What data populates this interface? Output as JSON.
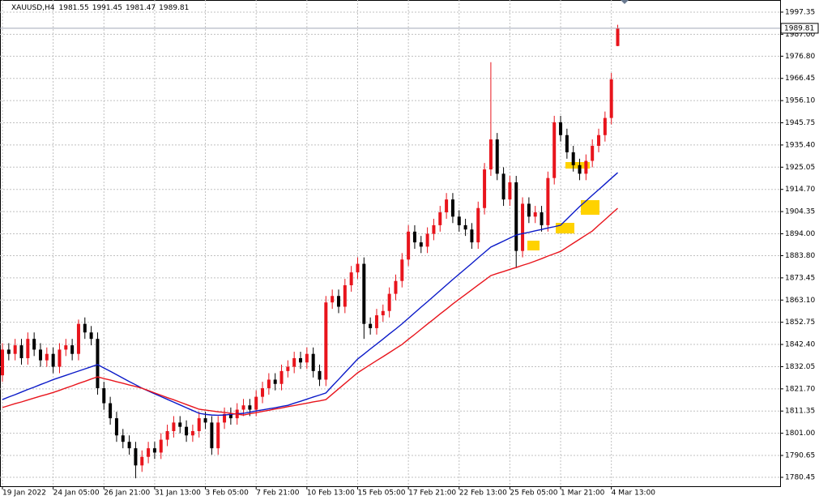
{
  "chart_data": {
    "type": "candlestick",
    "title": "XAUUSD,H4",
    "categories": [
      "19 Jan 2022",
      null,
      null,
      null,
      null,
      null,
      null,
      null,
      "24 Jan 05:00",
      null,
      null,
      null,
      null,
      null,
      null,
      null,
      "26 Jan 21:00",
      null,
      null,
      null,
      null,
      null,
      null,
      null,
      "31 Jan 13:00",
      null,
      null,
      null,
      null,
      null,
      null,
      null,
      "3 Feb 05:00",
      null,
      null,
      null,
      null,
      null,
      null,
      null,
      "7 Feb 21:00",
      null,
      null,
      null,
      null,
      null,
      null,
      null,
      "10 Feb 13:00",
      null,
      null,
      null,
      null,
      null,
      null,
      null,
      "15 Feb 05:00",
      null,
      null,
      null,
      null,
      null,
      null,
      null,
      "17 Feb 21:00",
      null,
      null,
      null,
      null,
      null,
      null,
      null,
      "22 Feb 13:00",
      null,
      null,
      null,
      null,
      null,
      null,
      null,
      "25 Feb 05:00",
      null,
      null,
      null,
      null,
      null,
      null,
      null,
      "1 Mar 21:00",
      null,
      null,
      null,
      null,
      null,
      null,
      null,
      "4 Mar 13:00",
      null
    ],
    "open": [
      1828,
      1840,
      1838,
      1842,
      1836,
      1845,
      1840,
      1835,
      1838,
      1832,
      1840,
      1842,
      1838,
      1852,
      1848,
      1845,
      1822,
      1815,
      1808,
      1800,
      1797,
      1794,
      1786,
      1790,
      1794,
      1792,
      1798,
      1802,
      1806,
      1804,
      1800,
      1802,
      1808,
      1806,
      1794,
      1806,
      1810,
      1808,
      1812,
      1814,
      1812,
      1818,
      1822,
      1826,
      1824,
      1830,
      1832,
      1836,
      1834,
      1838,
      1830,
      1826,
      1862,
      1865,
      1860,
      1870,
      1876,
      1880,
      1852,
      1850,
      1856,
      1858,
      1866,
      1872,
      1882,
      1895,
      1890,
      1888,
      1894,
      1898,
      1904,
      1910,
      1902,
      1898,
      1896,
      1890,
      1906,
      1924,
      1938,
      1922,
      1910,
      1918,
      1886,
      1908,
      1902,
      1904,
      1898,
      1920,
      1946,
      1940,
      1932,
      1926,
      1922,
      1928,
      1935,
      1940,
      1948,
      1981.55
    ],
    "high": [
      1843,
      1843,
      1845,
      1845,
      1848,
      1848,
      1843,
      1841,
      1841,
      1843,
      1845,
      1845,
      1854,
      1855,
      1851,
      1848,
      1825,
      1818,
      1811,
      1803,
      1800,
      1797,
      1793,
      1797,
      1797,
      1801,
      1805,
      1809,
      1809,
      1807,
      1805,
      1811,
      1811,
      1809,
      1809,
      1813,
      1813,
      1815,
      1817,
      1817,
      1821,
      1825,
      1829,
      1829,
      1833,
      1835,
      1839,
      1839,
      1841,
      1841,
      1833,
      1865,
      1868,
      1868,
      1873,
      1879,
      1883,
      1883,
      1855,
      1859,
      1861,
      1869,
      1875,
      1885,
      1898,
      1898,
      1893,
      1897,
      1901,
      1907,
      1913,
      1913,
      1905,
      1901,
      1899,
      1909,
      1927,
      1974,
      1941,
      1925,
      1921,
      1921,
      1911,
      1911,
      1907,
      1907,
      1923,
      1949,
      1949,
      1943,
      1935,
      1929,
      1931,
      1938,
      1943,
      1951,
      1969,
      1991.45
    ],
    "low": [
      1825,
      1835,
      1835,
      1833,
      1833,
      1837,
      1832,
      1832,
      1829,
      1829,
      1837,
      1835,
      1835,
      1845,
      1842,
      1819,
      1812,
      1805,
      1797,
      1794,
      1791,
      1780,
      1783,
      1787,
      1789,
      1789,
      1795,
      1799,
      1801,
      1797,
      1797,
      1799,
      1803,
      1791,
      1791,
      1803,
      1805,
      1805,
      1809,
      1809,
      1809,
      1815,
      1819,
      1821,
      1821,
      1827,
      1829,
      1831,
      1831,
      1827,
      1823,
      1823,
      1859,
      1857,
      1857,
      1867,
      1873,
      1845,
      1847,
      1847,
      1853,
      1855,
      1863,
      1869,
      1879,
      1887,
      1885,
      1885,
      1891,
      1895,
      1901,
      1899,
      1895,
      1893,
      1887,
      1887,
      1903,
      1921,
      1919,
      1907,
      1907,
      1878,
      1883,
      1899,
      1899,
      1895,
      1895,
      1917,
      1937,
      1929,
      1923,
      1919,
      1919,
      1925,
      1932,
      1937,
      1945,
      1981.47
    ],
    "close": [
      1840,
      1838,
      1842,
      1836,
      1845,
      1840,
      1835,
      1838,
      1832,
      1840,
      1842,
      1838,
      1852,
      1848,
      1845,
      1822,
      1815,
      1808,
      1800,
      1797,
      1794,
      1786,
      1790,
      1794,
      1792,
      1798,
      1802,
      1806,
      1804,
      1800,
      1802,
      1808,
      1806,
      1794,
      1806,
      1810,
      1808,
      1812,
      1814,
      1812,
      1818,
      1822,
      1826,
      1824,
      1830,
      1832,
      1836,
      1834,
      1838,
      1830,
      1826,
      1862,
      1865,
      1860,
      1870,
      1876,
      1880,
      1852,
      1850,
      1856,
      1858,
      1866,
      1872,
      1882,
      1895,
      1890,
      1888,
      1894,
      1898,
      1904,
      1910,
      1902,
      1898,
      1896,
      1890,
      1906,
      1924,
      1938,
      1922,
      1910,
      1918,
      1886,
      1908,
      1902,
      1904,
      1898,
      1920,
      1946,
      1940,
      1932,
      1926,
      1922,
      1928,
      1935,
      1940,
      1948,
      1966,
      1989.81
    ],
    "up_color": "#e8141c",
    "down_color": "#000000",
    "lines": [
      {
        "color": "#0b1ac8",
        "values": [
          1816.7,
          1817.9,
          1819.0,
          1820.2,
          1821.4,
          1822.5,
          1823.7,
          1824.8,
          1826.0,
          1827.0,
          1828.0,
          1829.0,
          1830.0,
          1831.0,
          1832.0,
          1833.0,
          1831.4,
          1829.9,
          1828.3,
          1826.7,
          1825.1,
          1823.6,
          1822.0,
          1820.7,
          1819.4,
          1818.1,
          1816.8,
          1815.5,
          1814.2,
          1812.9,
          1811.6,
          1810.3,
          1809.8,
          1809.5,
          1809.4,
          1809.5,
          1809.8,
          1810.1,
          1810.3,
          1810.8,
          1811.4,
          1811.9,
          1812.4,
          1812.9,
          1813.5,
          1814.0,
          1815.0,
          1815.9,
          1816.9,
          1817.9,
          1818.8,
          1819.8,
          1823.0,
          1826.1,
          1829.3,
          1832.4,
          1835.6,
          1837.9,
          1840.3,
          1842.6,
          1844.9,
          1847.3,
          1849.6,
          1852.0,
          1854.6,
          1857.2,
          1859.8,
          1862.3,
          1864.9,
          1867.5,
          1870.1,
          1872.7,
          1875.2,
          1877.7,
          1880.2,
          1882.8,
          1885.3,
          1887.8,
          1889.2,
          1890.6,
          1892.0,
          1893.4,
          1894.1,
          1894.7,
          1895.4,
          1896.0,
          1896.7,
          1897.3,
          1898.0,
          1900.9,
          1903.8,
          1906.7,
          1909.3,
          1912.0,
          1914.6,
          1917.2,
          1919.9,
          1922.5
        ]
      },
      {
        "color": "#e8141c",
        "values": [
          1813.0,
          1813.9,
          1814.8,
          1815.6,
          1816.5,
          1817.4,
          1818.3,
          1819.1,
          1820.0,
          1821.0,
          1822.1,
          1823.1,
          1824.2,
          1825.2,
          1826.3,
          1827.3,
          1826.5,
          1825.8,
          1825.0,
          1824.3,
          1823.5,
          1822.8,
          1822.0,
          1820.9,
          1819.8,
          1818.7,
          1817.6,
          1816.6,
          1815.5,
          1814.4,
          1813.3,
          1812.2,
          1811.8,
          1811.4,
          1811.0,
          1810.7,
          1810.3,
          1809.9,
          1809.5,
          1810.1,
          1810.6,
          1811.2,
          1811.7,
          1812.3,
          1812.8,
          1813.4,
          1813.9,
          1814.5,
          1815.0,
          1815.6,
          1816.1,
          1816.7,
          1819.2,
          1821.7,
          1824.2,
          1826.7,
          1829.2,
          1831.1,
          1833.0,
          1834.9,
          1836.7,
          1838.6,
          1840.5,
          1842.4,
          1844.8,
          1847.1,
          1849.5,
          1851.9,
          1854.2,
          1856.6,
          1858.9,
          1861.3,
          1863.5,
          1865.7,
          1867.9,
          1870.1,
          1872.3,
          1874.5,
          1875.5,
          1876.4,
          1877.4,
          1878.3,
          1879.3,
          1880.2,
          1881.3,
          1882.4,
          1883.6,
          1884.7,
          1885.8,
          1887.7,
          1889.6,
          1891.5,
          1893.4,
          1895.3,
          1898.0,
          1900.6,
          1903.3,
          1905.9
        ]
      }
    ],
    "ylim": [
      1776.3,
      2003.0
    ],
    "yticks": [
      1997.35,
      {
        "value": 1987,
        "label": "1987.00"
      },
      {
        "value": 1976.8,
        "label": "1976.80"
      },
      1966.45,
      {
        "value": 1956.1,
        "label": "1956.10"
      },
      1945.75,
      {
        "value": 1935.4,
        "label": "1935.40"
      },
      1925.05,
      {
        "value": 1914.7,
        "label": "1914.70"
      },
      1904.35,
      {
        "value": 1894,
        "label": "1894.00"
      },
      {
        "value": 1883.8,
        "label": "1883.80"
      },
      1873.45,
      {
        "value": 1863.1,
        "label": "1863.10"
      },
      1852.75,
      {
        "value": 1842.4,
        "label": "1842.40"
      },
      1832.05,
      {
        "value": 1821.7,
        "label": "1821.70"
      },
      1811.35,
      {
        "value": 1801,
        "label": "1801.00"
      },
      1790.65,
      1780.45
    ],
    "grid": true
  }
}
